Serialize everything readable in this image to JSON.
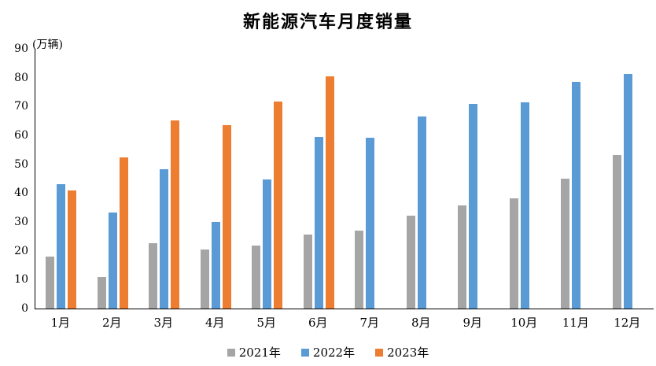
{
  "chart_data": {
    "type": "bar",
    "title": "新能源汽车月度销量",
    "unit_label": "(万辆)",
    "xlabel": "",
    "ylabel": "(万辆)",
    "ylim": [
      0,
      90
    ],
    "y_ticks": [
      0,
      10,
      20,
      30,
      40,
      50,
      60,
      70,
      80,
      90
    ],
    "grid": false,
    "legend_position": "bottom",
    "axis_color": "#000000",
    "background_color": "#ffffff",
    "categories": [
      "1月",
      "2月",
      "3月",
      "4月",
      "5月",
      "6月",
      "7月",
      "8月",
      "9月",
      "10月",
      "11月",
      "12月"
    ],
    "series": [
      {
        "name": "2021年",
        "color": "#A5A5A5",
        "values": [
          17.9,
          11.0,
          22.6,
          20.6,
          21.7,
          25.6,
          27.1,
          32.1,
          35.7,
          38.3,
          45.0,
          53.1
        ]
      },
      {
        "name": "2022年",
        "color": "#5B9BD5",
        "values": [
          43.1,
          33.4,
          48.4,
          29.9,
          44.7,
          59.6,
          59.3,
          66.6,
          70.8,
          71.4,
          78.6,
          81.4
        ]
      },
      {
        "name": "2023年",
        "color": "#ED7D31",
        "values": [
          40.8,
          52.5,
          65.3,
          63.6,
          71.7,
          80.6,
          null,
          null,
          null,
          null,
          null,
          null
        ]
      }
    ]
  }
}
